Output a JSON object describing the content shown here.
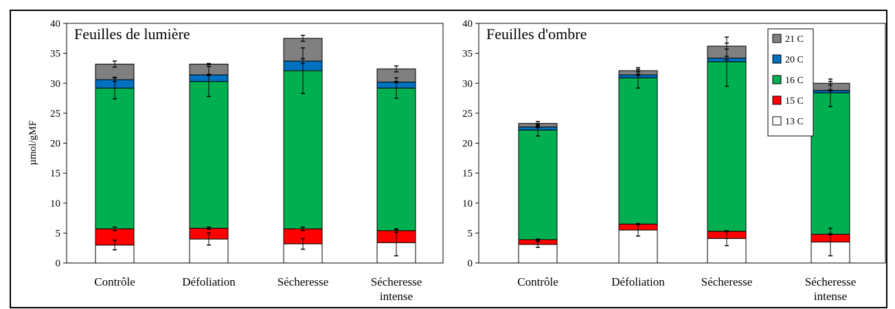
{
  "colors": {
    "13 C": "#ffffff",
    "15 C": "#ff0000",
    "16 C": "#00b050",
    "20 C": "#0070c0",
    "21 C": "#808080"
  },
  "chart_data": [
    {
      "type": "bar",
      "stacked": true,
      "title": "Feuilles de lumière",
      "ylabel": "µmol/gMF",
      "xlabel": "",
      "ylim": [
        0,
        40
      ],
      "yticks": [
        0,
        5,
        10,
        15,
        20,
        25,
        30,
        35,
        40
      ],
      "grid": false,
      "legend": "none",
      "categories": [
        [
          "Contrôle"
        ],
        [
          "Défoliation"
        ],
        [
          "Sécheresse"
        ],
        [
          "Sécheresse",
          "intense"
        ]
      ],
      "series": [
        {
          "name": "13 C",
          "values": [
            3.0,
            4.0,
            3.2,
            3.4
          ],
          "errors": [
            0.8,
            1.0,
            0.9,
            2.2
          ]
        },
        {
          "name": "15 C",
          "values": [
            2.7,
            1.8,
            2.5,
            2.0
          ],
          "errors": [
            0.3,
            0.2,
            0.3,
            0.3
          ]
        },
        {
          "name": "16 C",
          "values": [
            23.5,
            24.5,
            26.4,
            23.8
          ],
          "errors": [
            1.8,
            2.5,
            3.8,
            1.7
          ]
        },
        {
          "name": "20 C",
          "values": [
            1.4,
            1.1,
            1.6,
            1.0
          ],
          "errors": [
            0.3,
            0.1,
            0.4,
            0.1
          ]
        },
        {
          "name": "21 C",
          "values": [
            2.6,
            1.8,
            3.8,
            2.2
          ],
          "errors": [
            0.5,
            0.1,
            0.5,
            0.5
          ]
        }
      ]
    },
    {
      "type": "bar",
      "stacked": true,
      "title": "Feuilles d'ombre",
      "ylabel": "",
      "xlabel": "",
      "ylim": [
        0,
        40
      ],
      "yticks": [
        0,
        5,
        10,
        15,
        20,
        25,
        30,
        35,
        40
      ],
      "grid": false,
      "legend": "top-right",
      "categories": [
        [
          "Contrôle"
        ],
        [
          "Défoliation"
        ],
        [
          "Sécheresse"
        ],
        [
          "Sécheresse",
          "intense"
        ]
      ],
      "series": [
        {
          "name": "13 C",
          "values": [
            3.1,
            5.5,
            4.1,
            3.5
          ],
          "errors": [
            0.5,
            1.0,
            1.2,
            2.3
          ]
        },
        {
          "name": "15 C",
          "values": [
            0.8,
            1.0,
            1.2,
            1.3
          ],
          "errors": [
            0.1,
            0.1,
            0.1,
            0.1
          ]
        },
        {
          "name": "16 C",
          "values": [
            18.3,
            24.4,
            28.3,
            23.6
          ],
          "errors": [
            1.0,
            1.7,
            4.1,
            2.3
          ]
        },
        {
          "name": "20 C",
          "values": [
            0.5,
            0.5,
            0.6,
            0.4
          ],
          "errors": [
            0.1,
            0.1,
            0.3,
            0.1
          ]
        },
        {
          "name": "21 C",
          "values": [
            0.6,
            0.7,
            2.0,
            1.2
          ],
          "errors": [
            0.3,
            0.2,
            0.5,
            0.3
          ]
        }
      ]
    }
  ],
  "legend": {
    "items": [
      "21 C",
      "20 C",
      "16 C",
      "15 C",
      "13 C"
    ]
  }
}
